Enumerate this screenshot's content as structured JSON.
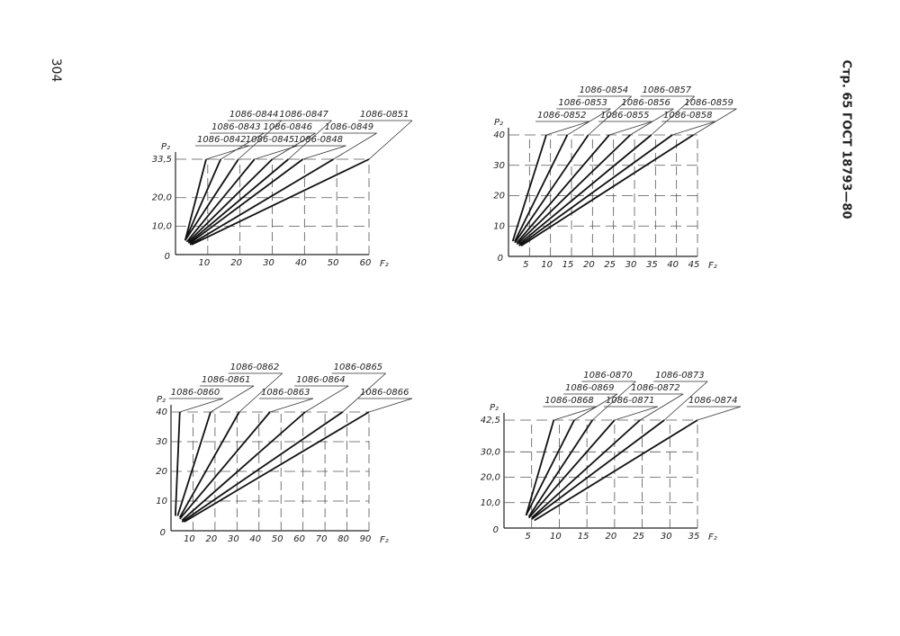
{
  "page_number": "304",
  "header": "Стр. 65 ГОСТ 18793—80",
  "chart_data": [
    {
      "type": "line",
      "x_label": "F₂",
      "y_label": "P₂",
      "grid": true,
      "color": "#111",
      "xlim": [
        0,
        60
      ],
      "ylim": [
        0,
        33.5
      ],
      "xticks": [
        10,
        20,
        30,
        40,
        50,
        60
      ],
      "yticks": [
        {
          "value": 10,
          "label": "10,0"
        },
        {
          "value": 20,
          "label": "20,0"
        },
        {
          "value": 33.5,
          "label": "33,5"
        }
      ],
      "series": [
        {
          "name": "1086-0842",
          "x": [
            3,
            9.5
          ],
          "values": [
            5,
            33.5
          ]
        },
        {
          "name": "1086-0843",
          "x": [
            3,
            14
          ],
          "values": [
            5,
            33.5
          ]
        },
        {
          "name": "1086-0844",
          "x": [
            3,
            19.5
          ],
          "values": [
            5,
            33.5
          ]
        },
        {
          "name": "1086-0845",
          "x": [
            3.5,
            24.5
          ],
          "values": [
            4.5,
            33.5
          ]
        },
        {
          "name": "1086-0846",
          "x": [
            4,
            30
          ],
          "values": [
            4.5,
            33.5
          ]
        },
        {
          "name": "1086-0847",
          "x": [
            4,
            35
          ],
          "values": [
            4,
            33.5
          ]
        },
        {
          "name": "1086-0848",
          "x": [
            4.5,
            39.5
          ],
          "values": [
            4,
            33.5
          ]
        },
        {
          "name": "1086-0849",
          "x": [
            4.5,
            49
          ],
          "values": [
            3.5,
            33.5
          ]
        },
        {
          "name": "1086-0851",
          "x": [
            5,
            60
          ],
          "values": [
            3.5,
            33.5
          ]
        }
      ]
    },
    {
      "type": "line",
      "x_label": "F₂",
      "y_label": "P₂",
      "grid": true,
      "color": "#111",
      "xlim": [
        0,
        45
      ],
      "ylim": [
        0,
        40
      ],
      "xticks": [
        5,
        10,
        15,
        20,
        25,
        30,
        35,
        40,
        45
      ],
      "yticks": [
        10,
        20,
        30,
        40
      ],
      "series": [
        {
          "name": "1086-0852",
          "x": [
            1,
            9
          ],
          "values": [
            5,
            40
          ]
        },
        {
          "name": "1086-0853",
          "x": [
            1.5,
            14
          ],
          "values": [
            5,
            40
          ]
        },
        {
          "name": "1086-0854",
          "x": [
            1.5,
            19
          ],
          "values": [
            4.5,
            40
          ]
        },
        {
          "name": "1086-0855",
          "x": [
            2,
            24
          ],
          "values": [
            4.5,
            40
          ]
        },
        {
          "name": "1086-0856",
          "x": [
            2,
            29
          ],
          "values": [
            4,
            40
          ]
        },
        {
          "name": "1086-0857",
          "x": [
            2.5,
            34
          ],
          "values": [
            4,
            40
          ]
        },
        {
          "name": "1086-0858",
          "x": [
            2.5,
            39
          ],
          "values": [
            3.5,
            40
          ]
        },
        {
          "name": "1086-0859",
          "x": [
            3,
            44
          ],
          "values": [
            3.5,
            40
          ]
        }
      ]
    },
    {
      "type": "line",
      "x_label": "F₂",
      "y_label": "P₂",
      "grid": true,
      "color": "#111",
      "xlim": [
        0,
        90
      ],
      "ylim": [
        0,
        40
      ],
      "xticks": [
        10,
        20,
        30,
        40,
        50,
        60,
        70,
        80,
        90
      ],
      "yticks": [
        10,
        20,
        30,
        40
      ],
      "series": [
        {
          "name": "1086-0860",
          "x": [
            2,
            4
          ],
          "values": [
            5,
            40
          ]
        },
        {
          "name": "1086-0861",
          "x": [
            3,
            18
          ],
          "values": [
            5,
            40
          ]
        },
        {
          "name": "1086-0862",
          "x": [
            4,
            31
          ],
          "values": [
            4.5,
            40
          ]
        },
        {
          "name": "1086-0863",
          "x": [
            4,
            45
          ],
          "values": [
            4,
            40
          ]
        },
        {
          "name": "1086-0864",
          "x": [
            5,
            61
          ],
          "values": [
            3.5,
            40
          ]
        },
        {
          "name": "1086-0865",
          "x": [
            5,
            78
          ],
          "values": [
            3,
            40
          ]
        },
        {
          "name": "1086-0866",
          "x": [
            6,
            90
          ],
          "values": [
            3,
            40
          ]
        }
      ]
    },
    {
      "type": "line",
      "x_label": "F₂",
      "y_label": "P₂",
      "grid": true,
      "color": "#111",
      "xlim": [
        0,
        35
      ],
      "ylim": [
        0,
        42.5
      ],
      "xticks": [
        5,
        10,
        15,
        20,
        25,
        30,
        35
      ],
      "yticks": [
        {
          "value": 10,
          "label": "10,0"
        },
        {
          "value": 20,
          "label": "20,0"
        },
        {
          "value": 30,
          "label": "30,0"
        },
        {
          "value": 42.5,
          "label": "42,5"
        }
      ],
      "series": [
        {
          "name": "1086-0868",
          "x": [
            4,
            9
          ],
          "values": [
            5,
            42.5
          ]
        },
        {
          "name": "1086-0869",
          "x": [
            4,
            12.7
          ],
          "values": [
            5,
            42.5
          ]
        },
        {
          "name": "1086-0870",
          "x": [
            4.5,
            16
          ],
          "values": [
            4.5,
            42.5
          ]
        },
        {
          "name": "1086-0871",
          "x": [
            4.5,
            20
          ],
          "values": [
            4,
            42.5
          ]
        },
        {
          "name": "1086-0872",
          "x": [
            5,
            24.6
          ],
          "values": [
            4,
            42.5
          ]
        },
        {
          "name": "1086-0873",
          "x": [
            5,
            29
          ],
          "values": [
            3.5,
            42.5
          ]
        },
        {
          "name": "1086-0874",
          "x": [
            5.5,
            35
          ],
          "values": [
            3,
            42.5
          ]
        }
      ]
    }
  ]
}
